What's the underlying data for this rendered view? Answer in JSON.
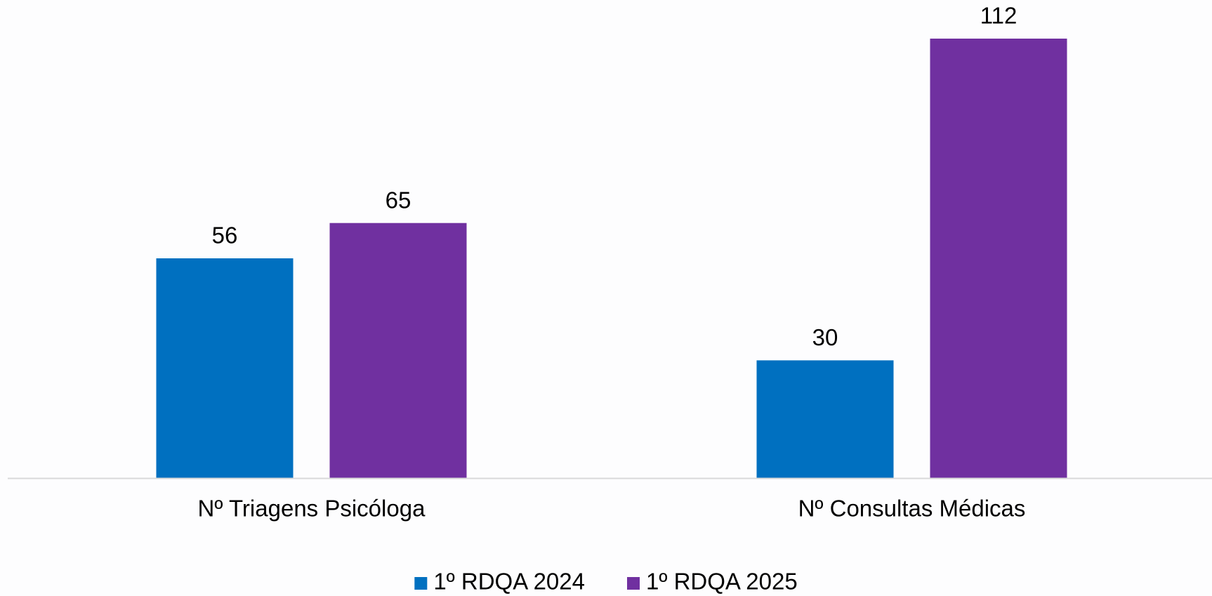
{
  "chart_data": {
    "type": "bar",
    "categories": [
      "Nº Triagens Psicóloga",
      "Nº Consultas Médicas"
    ],
    "series": [
      {
        "name": "1º RDQA 2024",
        "color": "#0070c0",
        "values": [
          56,
          30
        ]
      },
      {
        "name": "1º RDQA 2025",
        "color": "#7030a0",
        "values": [
          65,
          112
        ]
      }
    ],
    "legend": "bottom"
  }
}
